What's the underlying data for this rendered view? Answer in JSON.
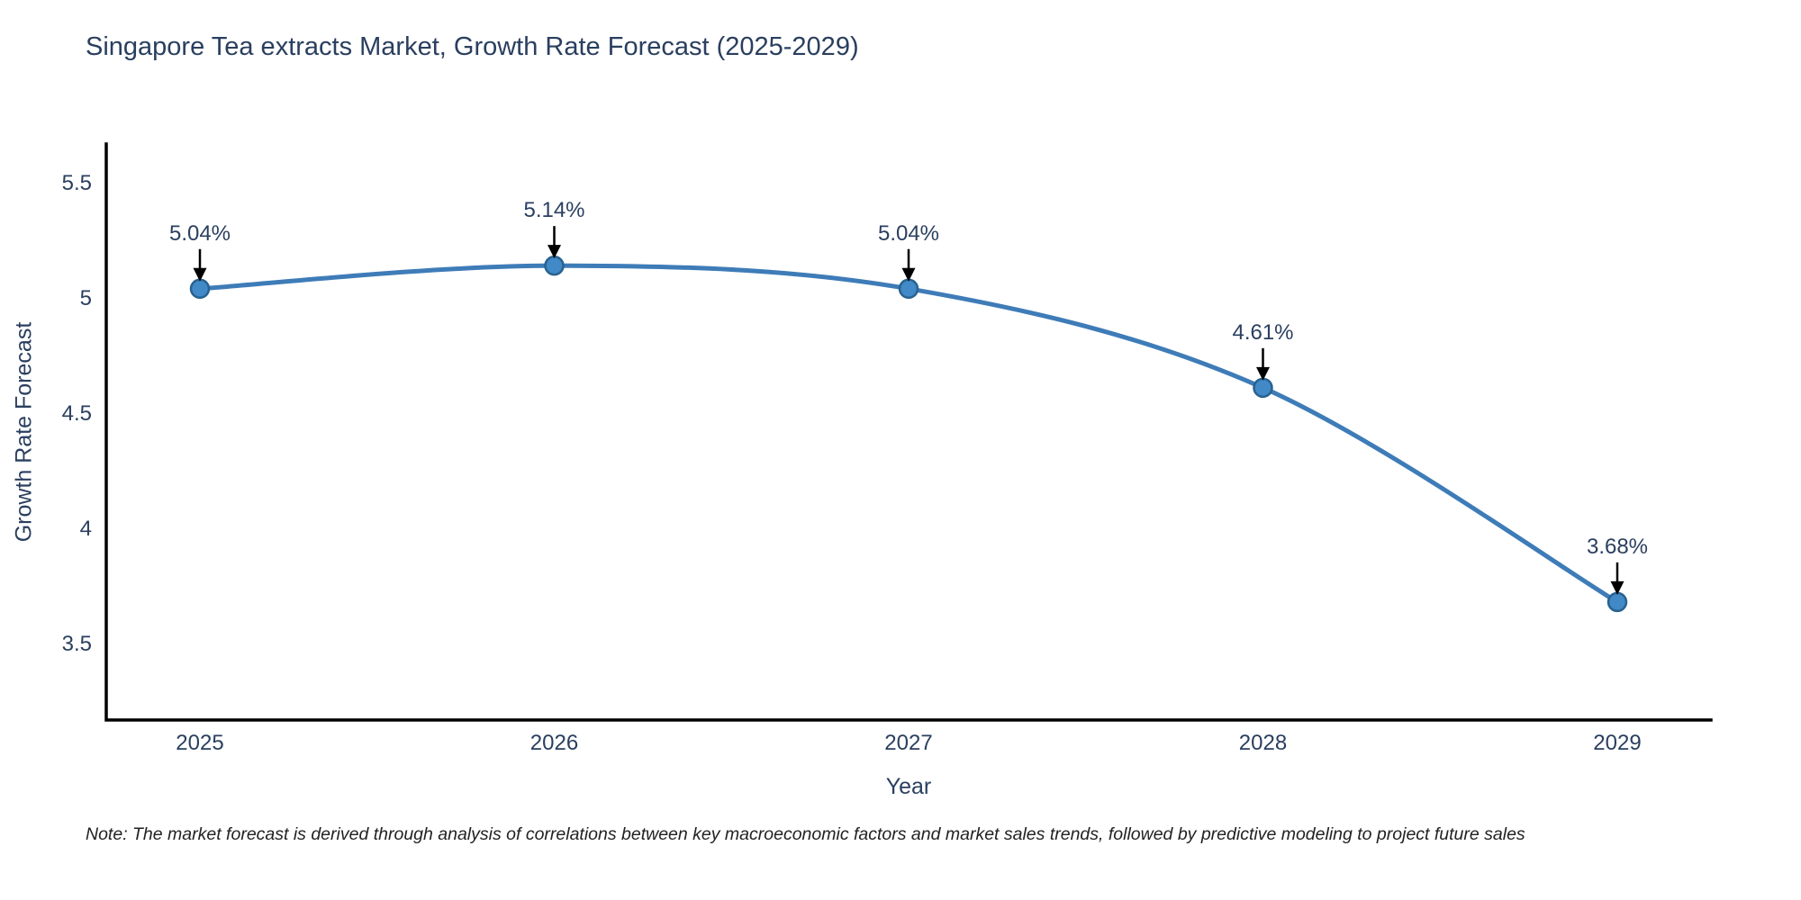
{
  "chart_data": {
    "type": "line",
    "title": "Singapore Tea extracts Market, Growth Rate Forecast (2025-2029)",
    "xlabel": "Year",
    "ylabel": "Growth Rate Forecast",
    "x": [
      2025,
      2026,
      2027,
      2028,
      2029
    ],
    "xtick_labels": [
      "2025",
      "2026",
      "2027",
      "2028",
      "2029"
    ],
    "series": [
      {
        "name": "Growth Rate Forecast",
        "values": [
          5.04,
          5.14,
          5.04,
          4.61,
          3.68
        ],
        "point_labels": [
          "5.04%",
          "5.14%",
          "5.04%",
          "4.61%",
          "3.68%"
        ]
      }
    ],
    "yticks": [
      3.5,
      4,
      4.5,
      5,
      5.5
    ],
    "ytick_labels": [
      "3.5",
      "4",
      "4.5",
      "5",
      "5.5"
    ],
    "ylim": [
      3.168,
      5.668
    ],
    "grid": false,
    "legend": "none",
    "line_shape": "spline",
    "annotations": "arrow-to-point"
  },
  "note": "Note: The market forecast is derived through analysis of correlations between key macroeconomic factors and market sales trends, followed by predictive modeling to project future sales",
  "colors": {
    "line": "#3e7cb8",
    "marker_fill": "#4189c7",
    "marker_stroke": "#28628f",
    "axis": "#000000",
    "text": "#2a3f5f",
    "annotation_arrow": "#000000",
    "note_text": "#222222",
    "background": "#ffffff"
  }
}
